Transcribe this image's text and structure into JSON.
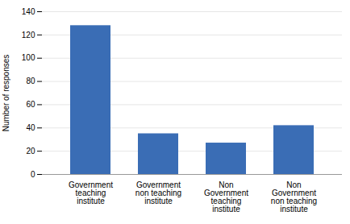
{
  "chart_data": {
    "type": "bar",
    "categories": [
      "Government\nteaching\ninstitute",
      "Government\nnon teaching\ninstitute",
      "Non\nGovernment\nteaching\ninstitute",
      "Non\nGovernment\nnon teaching\ninstitute"
    ],
    "values": [
      128,
      35,
      27,
      42
    ],
    "color": "#3A6DB5",
    "ylabel": "Number of responses",
    "ylim": [
      0,
      140
    ],
    "yticks": [
      0,
      20,
      40,
      60,
      80,
      100,
      120,
      140
    ],
    "grid": true
  }
}
